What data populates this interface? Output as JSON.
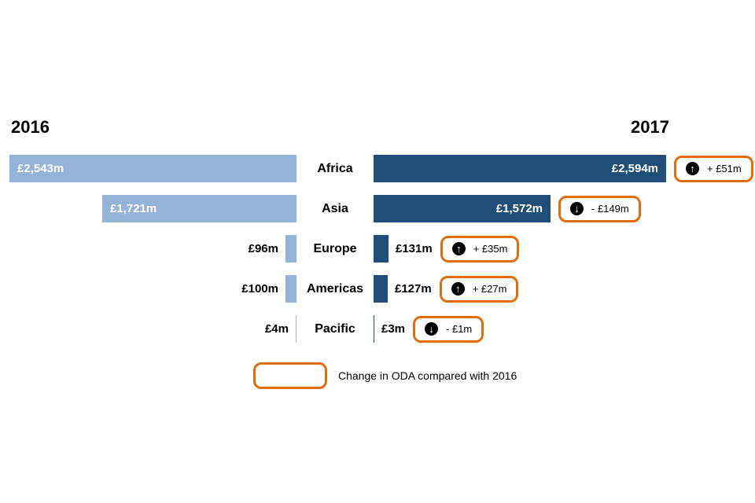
{
  "chart_data": {
    "type": "bar",
    "variant": "butterfly comparison, 2016 vs 2017 ODA by region",
    "left_header": "2016",
    "right_header": "2017",
    "categories": [
      "Africa",
      "Asia",
      "Europe",
      "Americas",
      "Pacific"
    ],
    "axis_max": 2594,
    "series": [
      {
        "name": "2016",
        "color": "#95b3d7",
        "values": [
          2543,
          1721,
          96,
          100,
          4
        ],
        "value_labels": [
          "£2,543m",
          "£1,721m",
          "£96m",
          "£100m",
          "£4m"
        ]
      },
      {
        "name": "2017",
        "color": "#1f4e79",
        "values": [
          2594,
          1572,
          131,
          127,
          3
        ],
        "value_labels": [
          "£2,594m",
          "£1,572m",
          "£131m",
          "£127m",
          "£3m"
        ]
      }
    ],
    "changes": [
      {
        "label": "+ £51m",
        "direction": "up"
      },
      {
        "label": "- £149m",
        "direction": "down"
      },
      {
        "label": "+ £35m",
        "direction": "up"
      },
      {
        "label": "+ £27m",
        "direction": "up"
      },
      {
        "label": "- £1m",
        "direction": "down"
      }
    ],
    "legend_label": "Change in ODA compared with 2016"
  },
  "colors": {
    "bar_2016": "#95b3d7",
    "bar_2017": "#1f4e79",
    "badge_border": "#e36c0a",
    "badge_icon_bg": "#000000",
    "text": "#000000",
    "background": "#ffffff"
  }
}
